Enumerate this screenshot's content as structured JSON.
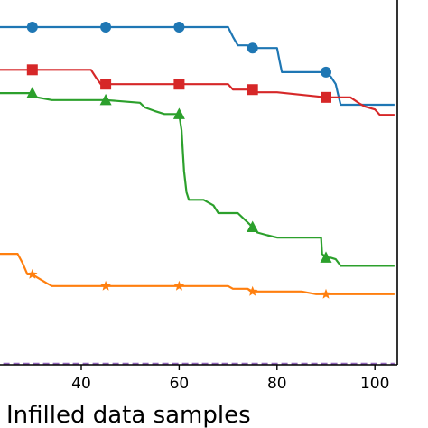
{
  "chart_data": {
    "type": "line",
    "title": "",
    "xlabel": "Infilled data samples",
    "ylabel": "",
    "xlim": [
      20,
      105
    ],
    "ylim": [
      0,
      100
    ],
    "xticks": [
      40,
      60,
      80,
      100
    ],
    "xtick_labels": [
      "40",
      "60",
      "80",
      "100"
    ],
    "grid": false,
    "series": [
      {
        "color": "#1f77b4",
        "marker": "circle",
        "x": [
          20,
          30,
          40,
          45,
          55,
          60,
          70,
          71,
          72,
          74,
          75,
          77,
          80,
          80.5,
          81,
          85,
          90,
          91,
          92,
          92.5,
          93,
          95,
          100,
          104
        ],
        "y": [
          97,
          97,
          97,
          97,
          97,
          97,
          97,
          94.5,
          92.3,
          92.3,
          91.6,
          91.6,
          91.6,
          88.4,
          85.4,
          85.4,
          85.4,
          84.2,
          82.3,
          79.5,
          77.0,
          77.0,
          77.0,
          77.0
        ],
        "marker_x": [
          30,
          45,
          60,
          75,
          90
        ]
      },
      {
        "color": "#d62728",
        "marker": "square",
        "x": [
          20,
          30,
          33,
          42,
          43,
          44,
          45,
          50,
          60,
          70,
          71,
          75,
          76,
          80,
          90,
          95,
          97,
          98,
          100,
          101,
          104
        ],
        "y": [
          86,
          86,
          86,
          86,
          84,
          82.3,
          82.3,
          82.3,
          82.3,
          82.3,
          80.9,
          80.9,
          80.2,
          80.2,
          78.9,
          78.9,
          77.2,
          76.5,
          75.8,
          74.4,
          74.4
        ],
        "marker_x": [
          30,
          45,
          60,
          75,
          90
        ]
      },
      {
        "color": "#2ca02c",
        "marker": "triangle",
        "x": [
          20,
          30,
          31,
          34,
          42,
          45,
          52,
          53,
          55,
          57,
          60,
          60.5,
          61,
          61.5,
          62,
          65,
          67,
          68,
          72,
          75,
          76,
          78,
          80,
          89,
          89.2,
          90,
          91,
          92,
          93,
          96,
          104
        ],
        "y": [
          80,
          80,
          78.9,
          78.2,
          78.2,
          78.2,
          77.5,
          76.3,
          75.4,
          74.6,
          74.6,
          70.4,
          60,
          54.5,
          52.5,
          52.5,
          51.1,
          49.1,
          49.1,
          45.5,
          44.1,
          43.4,
          42.8,
          42.8,
          38.6,
          37.6,
          37.6,
          37.2,
          35.5,
          35.5,
          35.5
        ],
        "marker_x": [
          30,
          45,
          60,
          75,
          90
        ]
      },
      {
        "color": "#ff7f0e",
        "marker": "star",
        "x": [
          20,
          21,
          22,
          27,
          28,
          29,
          30,
          31,
          33,
          34,
          50,
          60,
          70,
          71,
          74,
          75,
          85,
          88,
          90,
          104
        ],
        "y": [
          44.5,
          40.3,
          38.6,
          38.6,
          36.2,
          33.3,
          33.3,
          32.5,
          31.0,
          30.3,
          30.3,
          30.3,
          30.3,
          29.6,
          29.6,
          28.9,
          28.9,
          28.2,
          28.2,
          28.2
        ],
        "marker_x": [
          30,
          45,
          60,
          75,
          90
        ]
      },
      {
        "color": "#9467bd",
        "marker": "none",
        "dashed": true,
        "x": [
          20,
          104
        ],
        "y": [
          10.3,
          10.3
        ],
        "marker_x": []
      }
    ]
  }
}
